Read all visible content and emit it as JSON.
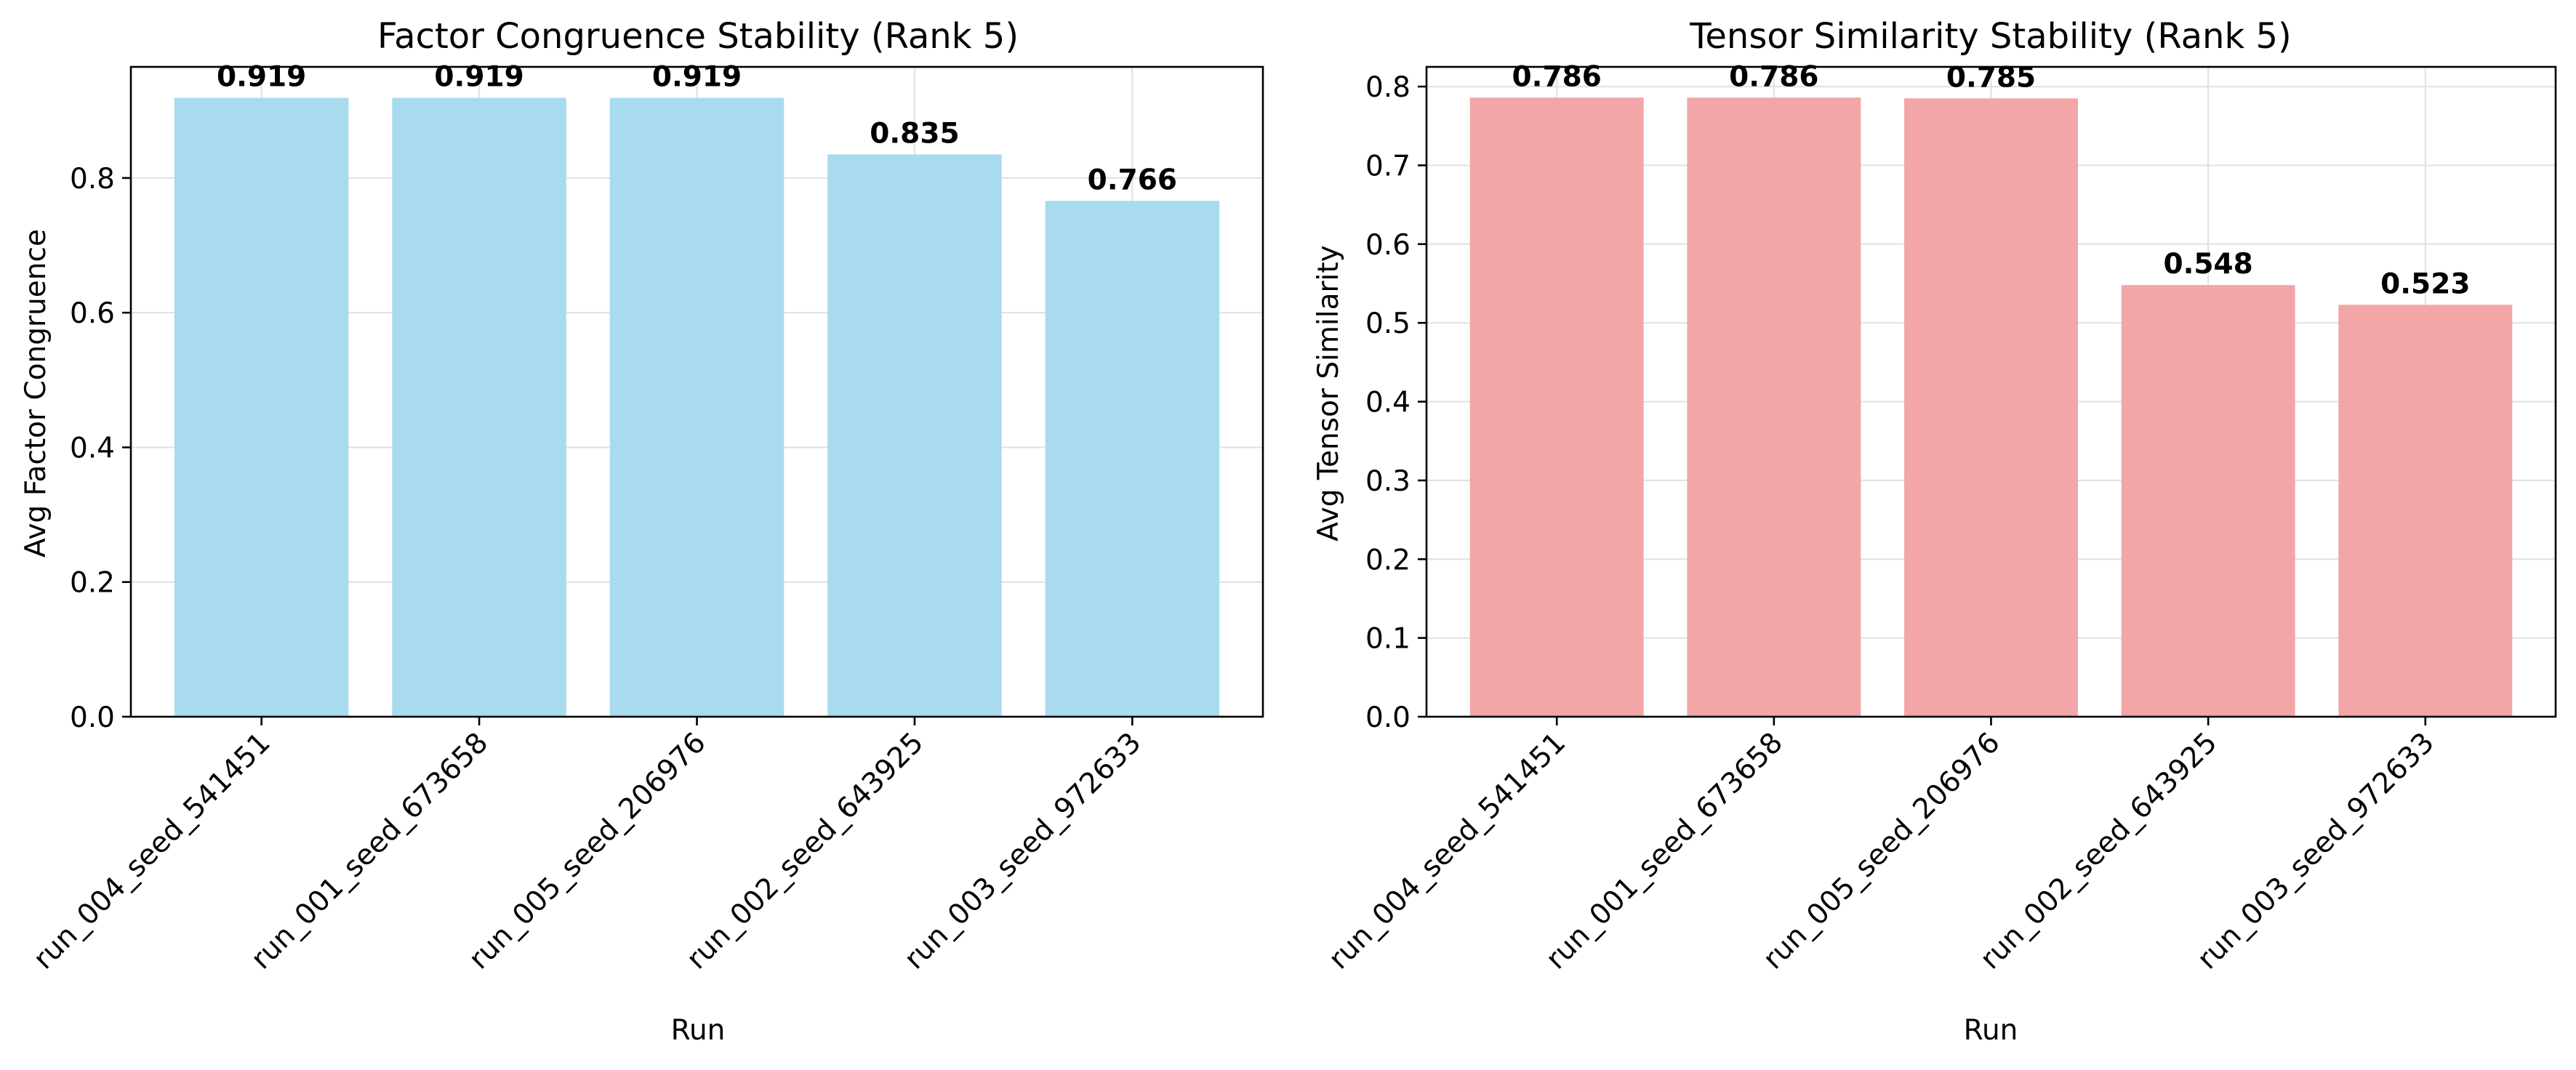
{
  "chart_data": [
    {
      "type": "bar",
      "title": "Factor Congruence Stability (Rank 5)",
      "xlabel": "Run",
      "ylabel": "Avg Factor Congruence",
      "categories": [
        "run_004_seed_541451",
        "run_001_seed_673658",
        "run_005_seed_206976",
        "run_002_seed_643925",
        "run_003_seed_972633"
      ],
      "values": [
        0.919,
        0.919,
        0.919,
        0.835,
        0.766
      ],
      "value_labels": [
        "0.919",
        "0.919",
        "0.919",
        "0.835",
        "0.766"
      ],
      "ylim": [
        0,
        0.965
      ],
      "yticks": [
        0.0,
        0.2,
        0.4,
        0.6,
        0.8
      ],
      "ytick_labels": [
        "0.0",
        "0.2",
        "0.4",
        "0.6",
        "0.8"
      ],
      "grid": true,
      "bar_color": "#a9dbee",
      "tick_rotation": 45
    },
    {
      "type": "bar",
      "title": "Tensor Similarity Stability (Rank 5)",
      "xlabel": "Run",
      "ylabel": "Avg Tensor Similarity",
      "categories": [
        "run_004_seed_541451",
        "run_001_seed_673658",
        "run_005_seed_206976",
        "run_002_seed_643925",
        "run_003_seed_972633"
      ],
      "values": [
        0.786,
        0.786,
        0.785,
        0.548,
        0.523
      ],
      "value_labels": [
        "0.786",
        "0.786",
        "0.785",
        "0.548",
        "0.523"
      ],
      "ylim": [
        0,
        0.825
      ],
      "yticks": [
        0.0,
        0.1,
        0.2,
        0.3,
        0.4,
        0.5,
        0.6,
        0.7,
        0.8
      ],
      "ytick_labels": [
        "0.0",
        "0.1",
        "0.2",
        "0.3",
        "0.4",
        "0.5",
        "0.6",
        "0.7",
        "0.8"
      ],
      "grid": true,
      "bar_color": "#f2a6a8",
      "tick_rotation": 45
    }
  ]
}
